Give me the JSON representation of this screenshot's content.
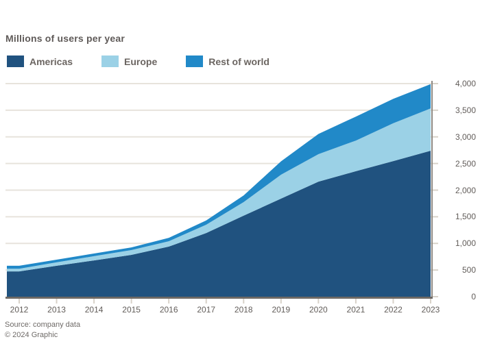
{
  "title": "Millions of users per year",
  "footer": {
    "line1": "Source: company data",
    "line2": "© 2024 Graphic"
  },
  "colors": {
    "background": "#ffffff",
    "gridline": "#e7e3dc",
    "baseline": "#6e6965",
    "right_axis": "#8d8984",
    "tick": "#d8d2c9",
    "title_text": "#5f5a58",
    "axis_text": "#615c59"
  },
  "chart_data": {
    "type": "area",
    "stacked": true,
    "title": "Millions of users per year",
    "xlabel": "",
    "ylabel": "",
    "ylim": [
      0,
      4000
    ],
    "grid": "horizontal",
    "legend_position": "top-left",
    "x": [
      "2012",
      "2013",
      "2014",
      "2015",
      "2016",
      "2017",
      "2018",
      "2019",
      "2020",
      "2021",
      "2022",
      "2023"
    ],
    "y_ticks": [
      "0",
      "500",
      "1,000",
      "1,500",
      "2,000",
      "2,500",
      "3,000",
      "3,500",
      "4,000"
    ],
    "series": [
      {
        "name": "Americas",
        "color": "#20527f",
        "values": [
          475,
          580,
          680,
          785,
          940,
          1195,
          1520,
          1840,
          2160,
          2355,
          2545,
          2740
        ]
      },
      {
        "name": "Europe",
        "color": "#9bd1e6",
        "values": [
          50,
          65,
          80,
          90,
          100,
          155,
          255,
          450,
          515,
          575,
          710,
          795
        ]
      },
      {
        "name": "Rest of world",
        "color": "#2189c8",
        "values": [
          55,
          50,
          50,
          50,
          65,
          80,
          125,
          250,
          380,
          450,
          460,
          455
        ]
      }
    ]
  }
}
